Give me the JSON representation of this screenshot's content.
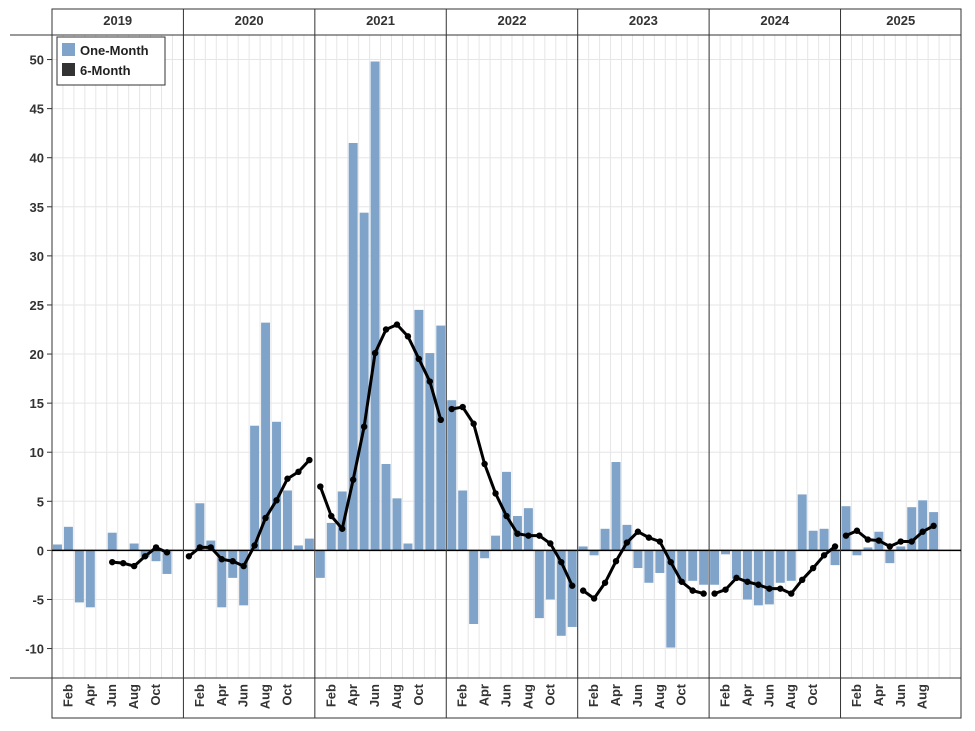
{
  "chart_data": {
    "type": "bar",
    "title": "",
    "xlabel": "",
    "ylabel": "",
    "ylim": [
      -13,
      52.5
    ],
    "yticks": [
      -10,
      -5,
      0,
      5,
      10,
      15,
      20,
      25,
      30,
      35,
      40,
      45,
      50
    ],
    "grid": true,
    "legend_position": "top-left",
    "start": {
      "year": 2019,
      "month": 1
    },
    "month_tick_labels": [
      "Feb",
      "Apr",
      "Jun",
      "Aug",
      "Oct"
    ],
    "years": [
      "2019",
      "2020",
      "2021",
      "2022",
      "2023",
      "2024",
      "2025"
    ],
    "series": [
      {
        "name": "One-Month",
        "type": "bar",
        "color": "#7fa3c9",
        "values": [
          0.6,
          2.4,
          -5.3,
          -5.8,
          null,
          1.8,
          null,
          0.7,
          -0.7,
          -1.1,
          -2.4,
          null,
          null,
          4.8,
          1.0,
          -5.8,
          -2.8,
          -5.6,
          12.7,
          23.2,
          13.1,
          6.1,
          0.5,
          1.2,
          -2.8,
          2.8,
          6.0,
          41.5,
          34.4,
          49.8,
          8.8,
          5.3,
          0.7,
          24.5,
          20.1,
          22.9,
          15.3,
          6.1,
          -7.5,
          -0.8,
          1.5,
          8.0,
          3.5,
          4.3,
          -6.9,
          -5.0,
          -8.7,
          -7.8,
          0.4,
          -0.5,
          2.2,
          9.0,
          2.6,
          -1.8,
          -3.3,
          -2.3,
          -9.9,
          -3.3,
          -3.1,
          -3.5,
          -3.5,
          -0.4,
          -2.9,
          -5.0,
          -5.6,
          -5.5,
          -3.3,
          -3.1,
          5.7,
          2.0,
          2.2,
          -1.5,
          4.5,
          -0.5,
          0.3,
          1.9,
          -1.3,
          0.4,
          4.4,
          5.1,
          3.9
        ]
      },
      {
        "name": "6-Month",
        "type": "line",
        "color": "#000000",
        "values": [
          null,
          null,
          null,
          null,
          null,
          -1.2,
          -1.3,
          -1.6,
          -0.6,
          0.3,
          -0.2,
          null,
          -0.6,
          0.3,
          0.3,
          -0.9,
          -1.1,
          -1.6,
          0.5,
          3.3,
          5.1,
          7.3,
          8.0,
          9.2,
          6.5,
          3.5,
          2.2,
          7.2,
          12.6,
          20.1,
          22.5,
          23.0,
          21.8,
          19.5,
          17.2,
          13.3,
          14.4,
          14.6,
          12.9,
          8.8,
          5.8,
          3.5,
          1.7,
          1.5,
          1.5,
          0.7,
          -1.2,
          -3.6,
          -4.1,
          -4.9,
          -3.3,
          -1.1,
          0.8,
          1.9,
          1.3,
          0.9,
          -1.2,
          -3.2,
          -4.1,
          -4.4,
          -4.4,
          -4.0,
          -2.8,
          -3.2,
          -3.5,
          -3.9,
          -3.9,
          -4.4,
          -3.0,
          -1.8,
          -0.5,
          0.4,
          1.5,
          2.0,
          1.1,
          1.0,
          0.4,
          0.9,
          0.9,
          1.9,
          2.5
        ]
      }
    ]
  }
}
